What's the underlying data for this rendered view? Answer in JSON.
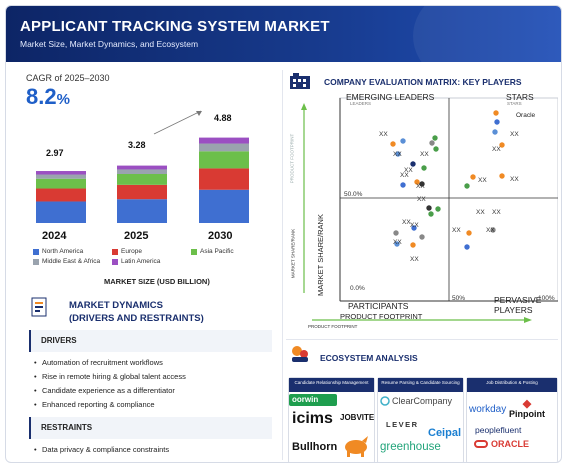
{
  "header": {
    "title": "APPLICANT TRACKING SYSTEM MARKET",
    "subtitle": "Market Size, Market Dynamics, and Ecosystem"
  },
  "cagr": {
    "label": "CAGR of 2025–2030",
    "value": "8.2",
    "unit": "%"
  },
  "chart_data": {
    "type": "bar",
    "categories": [
      "2024",
      "2025",
      "2030"
    ],
    "totals_labels": [
      "2.97",
      "3.28",
      "4.88"
    ],
    "totals": [
      2.97,
      3.28,
      4.88
    ],
    "series": [
      {
        "name": "North America",
        "color": "#3f6fd1",
        "values": [
          1.23,
          1.36,
          1.9
        ]
      },
      {
        "name": "Europe",
        "color": "#d93a33",
        "values": [
          0.74,
          0.82,
          1.22
        ]
      },
      {
        "name": "Asia Pacific",
        "color": "#6cbf4a",
        "values": [
          0.56,
          0.62,
          0.98
        ]
      },
      {
        "name": "Middle East & Africa",
        "color": "#9aa3ae",
        "values": [
          0.24,
          0.26,
          0.44
        ]
      },
      {
        "name": "Latin America",
        "color": "#9b4fc2",
        "values": [
          0.2,
          0.22,
          0.34
        ]
      }
    ],
    "xlabel": "MARKET SIZE (USD BILLION)"
  },
  "dynamics": {
    "title": "MARKET DYNAMICS\n(DRIVERS AND RESTRAINTS)",
    "title_line1": "MARKET DYNAMICS",
    "title_line2": "(DRIVERS AND RESTRAINTS)",
    "drivers_label": "DRIVERS",
    "drivers": [
      "Automation of recruitment workflows",
      "Rise in remote hiring & global talent access",
      "Candidate experience as a differentiator",
      "Enhanced reporting & compliance"
    ],
    "restraints_label": "RESTRAINTS",
    "restraints": [
      "Data privacy & compliance constraints"
    ]
  },
  "matrix": {
    "title": "COMPANY EVALUATION MATRIX: KEY PLAYERS",
    "q_tl": "EMERGING LEADERS",
    "q_tr": "STARS",
    "q_bl": "PARTICIPANTS",
    "q_br": "PERVASIVE PLAYERS",
    "q_tl_small": "LEADERS",
    "q_tr_small": "STARS",
    "y_axis": "MARKET SHARE/RANK",
    "y_axis_small": "MARKET SHARE/RANK",
    "y_axis_faint": "PRODUCT FOOTPRINT",
    "x_axis": "PRODUCT FOOTPRINT",
    "x_axis_small": "PRODUCT FOOTPRINT",
    "pct_50_y": "50.0%",
    "pct_0": "0.0%",
    "pct_50_x": "50%",
    "pct_100": "100%",
    "oracle": "Oracle",
    "xx": "XX"
  },
  "eco": {
    "title": "ECOSYSTEM ANALYSIS",
    "col1": "Candidate Relationship Management",
    "col2": "Resume Parsing & Candidate Sourcing",
    "col3": "Job Distribution & Posting",
    "logos": {
      "oorwin": "oorwin",
      "icims": "icims",
      "jobvite": "JOBVITE",
      "bullhorn": "Bullhorn",
      "clearcompany": "ClearCompany",
      "lever": "LEVER",
      "ceipal": "Ceipal",
      "greenhouse": "greenhouse",
      "workday": "workday",
      "pinpoint": "Pinpoint",
      "peoplefluent": "peoplefluent",
      "oracle": "ORACLE"
    }
  }
}
